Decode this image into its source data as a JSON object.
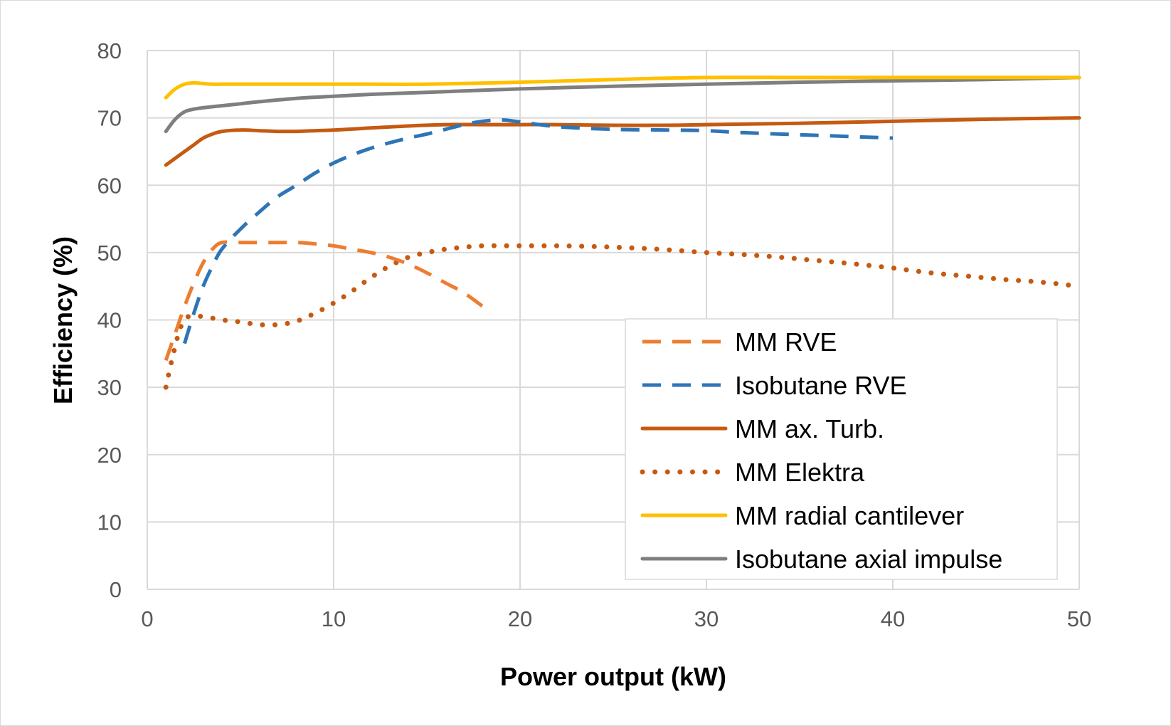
{
  "chart_data": {
    "type": "line",
    "xlabel": "Power output (kW)",
    "ylabel": "Efficiency (%)",
    "xlim": [
      0,
      50
    ],
    "ylim": [
      0,
      80
    ],
    "xticks": [
      0,
      10,
      20,
      30,
      40,
      50
    ],
    "yticks": [
      0,
      10,
      20,
      30,
      40,
      50,
      60,
      70,
      80
    ],
    "grid": true,
    "legend_position": "bottom-right",
    "series": [
      {
        "name": "MM RVE",
        "color": "#ED7D31",
        "style": "dashed",
        "x": [
          1,
          1.5,
          2,
          2.5,
          3,
          3.5,
          4,
          5,
          6,
          7,
          8,
          9,
          10,
          11,
          12,
          13,
          14,
          15,
          16,
          17,
          18
        ],
        "y": [
          34,
          38,
          42,
          45.5,
          48.5,
          50.5,
          51.5,
          51.5,
          51.5,
          51.5,
          51.5,
          51.3,
          51,
          50.5,
          50,
          49.3,
          48.3,
          47,
          45.5,
          44,
          42
        ]
      },
      {
        "name": "Isobutane RVE",
        "color": "#2E75B6",
        "style": "dashed",
        "x": [
          2,
          2.5,
          3,
          3.5,
          4,
          5,
          6,
          7,
          8,
          9,
          10,
          11,
          12,
          13,
          14,
          15,
          16,
          17,
          18,
          19,
          20,
          22,
          25,
          28,
          30,
          32,
          35,
          38,
          40
        ],
        "y": [
          36.5,
          41,
          45,
          48,
          50.5,
          53.5,
          56,
          58.3,
          60,
          61.8,
          63.3,
          64.5,
          65.5,
          66.3,
          67,
          67.6,
          68.3,
          69,
          69.5,
          69.7,
          69.4,
          68.7,
          68.3,
          68.2,
          68.1,
          67.8,
          67.5,
          67.2,
          67
        ]
      },
      {
        "name": "MM ax. Turb.",
        "color": "#C55A11",
        "style": "solid",
        "x": [
          1,
          1.5,
          2,
          2.5,
          3,
          3.5,
          4,
          5,
          6,
          7,
          8,
          9,
          10,
          12,
          14,
          16,
          18,
          20,
          22,
          25,
          28,
          30,
          35,
          40,
          45,
          50
        ],
        "y": [
          63,
          64,
          65,
          66,
          67,
          67.6,
          68,
          68.2,
          68.1,
          68,
          68,
          68.1,
          68.2,
          68.5,
          68.8,
          69,
          69,
          69,
          69,
          68.9,
          68.9,
          69,
          69.2,
          69.5,
          69.8,
          70
        ]
      },
      {
        "name": "MM Elektra",
        "color": "#C55A11",
        "style": "dotted",
        "x": [
          1,
          1.4,
          1.8,
          2.2,
          3,
          4,
          5,
          6,
          7,
          8,
          9,
          10,
          11,
          12,
          13,
          14,
          15,
          16,
          17,
          18,
          20,
          22,
          24,
          26,
          28,
          30,
          32,
          34,
          36,
          38,
          40,
          42,
          44,
          46,
          48,
          50
        ],
        "y": [
          30,
          35,
          39,
          40.5,
          40.5,
          40,
          39.7,
          39.3,
          39.3,
          39.8,
          41,
          42.5,
          44.3,
          46.3,
          48,
          49.3,
          50,
          50.5,
          50.8,
          51,
          51,
          51,
          50.9,
          50.7,
          50.4,
          50,
          49.7,
          49.3,
          48.8,
          48.3,
          47.7,
          47,
          46.5,
          46,
          45.6,
          45
        ]
      },
      {
        "name": "MM radial cantilever",
        "color": "#FFC000",
        "style": "solid",
        "x": [
          1,
          1.5,
          2,
          2.5,
          3,
          3.5,
          4,
          5,
          6,
          8,
          10,
          12,
          15,
          20,
          25,
          30,
          35,
          40,
          45,
          50
        ],
        "y": [
          73,
          74.3,
          75,
          75.2,
          75.1,
          75,
          75,
          75,
          75,
          75,
          75,
          75,
          75,
          75.3,
          75.7,
          76,
          76,
          76,
          76,
          76
        ]
      },
      {
        "name": "Isobutane axial impulse",
        "color": "#7F7F7F",
        "style": "solid",
        "x": [
          1,
          1.5,
          2,
          2.5,
          3,
          4,
          5,
          6,
          8,
          10,
          12,
          15,
          20,
          25,
          30,
          35,
          40,
          45,
          50
        ],
        "y": [
          68,
          69.8,
          70.9,
          71.3,
          71.5,
          71.8,
          72.1,
          72.4,
          72.9,
          73.2,
          73.5,
          73.8,
          74.3,
          74.7,
          75,
          75.3,
          75.5,
          75.7,
          76
        ]
      }
    ]
  }
}
